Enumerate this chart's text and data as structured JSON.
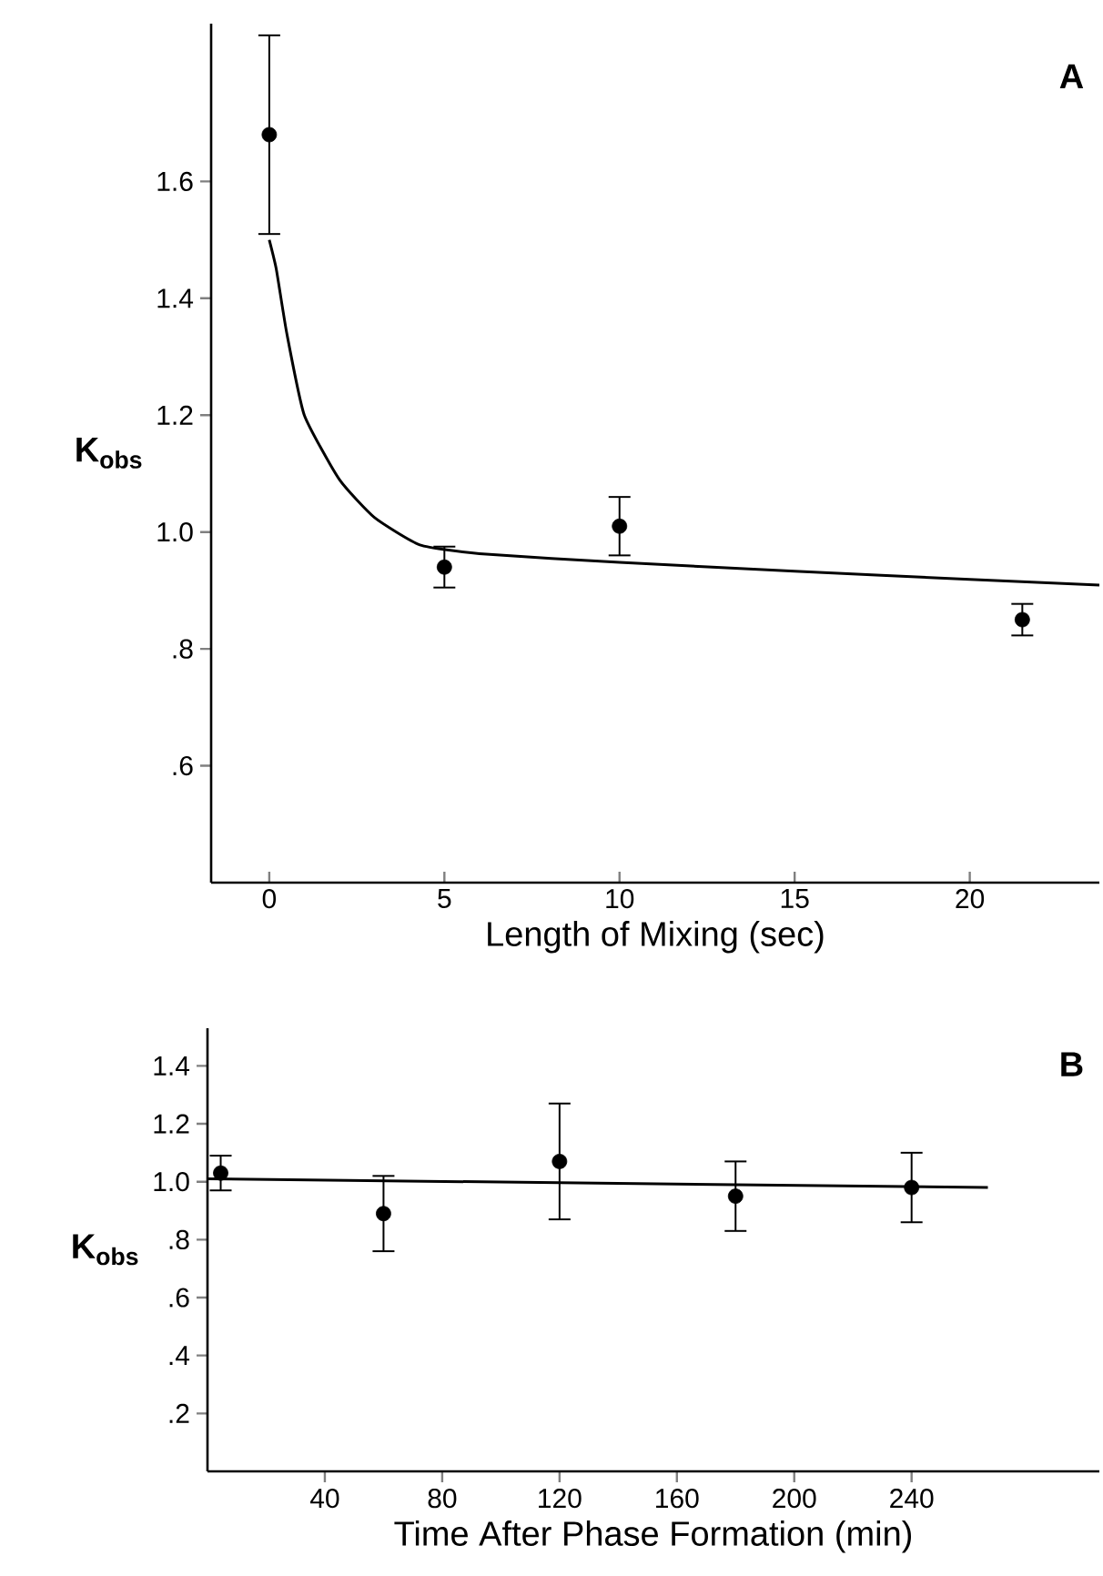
{
  "chart_data": [
    {
      "type": "scatter",
      "xlabel": "Length of Mixing (sec)",
      "ylabel": "K$_{obs}$",
      "annotations": [
        "A"
      ],
      "xlim": [
        -1.66,
        23.7
      ],
      "ylim": [
        0.4,
        1.87
      ],
      "xticks": [
        0,
        5,
        10,
        15,
        20
      ],
      "yticks": [
        {
          "value": 0.6,
          "label": ".6"
        },
        {
          "value": 0.8,
          "label": ".8"
        },
        {
          "value": 1,
          "label": "1.0"
        },
        {
          "value": 1.2,
          "label": "1.2"
        },
        {
          "value": 1.4,
          "label": "1.4"
        },
        {
          "value": 1.6,
          "label": "1.6"
        }
      ],
      "series": [
        {
          "type": "scatter",
          "marker": "circle",
          "color": "#000000",
          "x": [
            0,
            5,
            10,
            21.5
          ],
          "values": [
            1.68,
            0.94,
            1.01,
            0.85
          ],
          "errors": [
            0.17,
            0.035,
            0.05,
            0.027
          ]
        },
        {
          "type": "line",
          "color": "#000000",
          "x": [
            0,
            0.2,
            0.5,
            1,
            2,
            3,
            4.3,
            6,
            10,
            15,
            20,
            23.7
          ],
          "values": [
            1.5,
            1.45,
            1.34,
            1.2,
            1.09,
            1.025,
            0.978,
            0.963,
            0.948,
            0.933,
            0.919,
            0.909
          ]
        }
      ]
    },
    {
      "type": "scatter",
      "xlabel": "Time After Phase Formation (min)",
      "ylabel": "K$_{obs}$",
      "annotations": [
        "B"
      ],
      "xlim": [
        0,
        304
      ],
      "ylim": [
        0,
        1.53
      ],
      "xticks": [
        40,
        80,
        120,
        160,
        200,
        240
      ],
      "yticks": [
        {
          "value": 0.2,
          "label": ".2"
        },
        {
          "value": 0.4,
          "label": ".4"
        },
        {
          "value": 0.6,
          "label": ".6"
        },
        {
          "value": 0.8,
          "label": ".8"
        },
        {
          "value": 1,
          "label": "1.0"
        },
        {
          "value": 1.2,
          "label": "1.2"
        },
        {
          "value": 1.4,
          "label": "1.4"
        }
      ],
      "series": [
        {
          "type": "scatter",
          "marker": "circle",
          "color": "#000000",
          "x": [
            4.5,
            60,
            120,
            180,
            240
          ],
          "values": [
            1.03,
            0.89,
            1.07,
            0.95,
            0.98
          ],
          "errors": [
            0.06,
            0.13,
            0.2,
            0.12,
            0.12
          ]
        },
        {
          "type": "line",
          "color": "#000000",
          "x": [
            0,
            266
          ],
          "values": [
            1.01,
            0.98
          ]
        }
      ]
    }
  ]
}
